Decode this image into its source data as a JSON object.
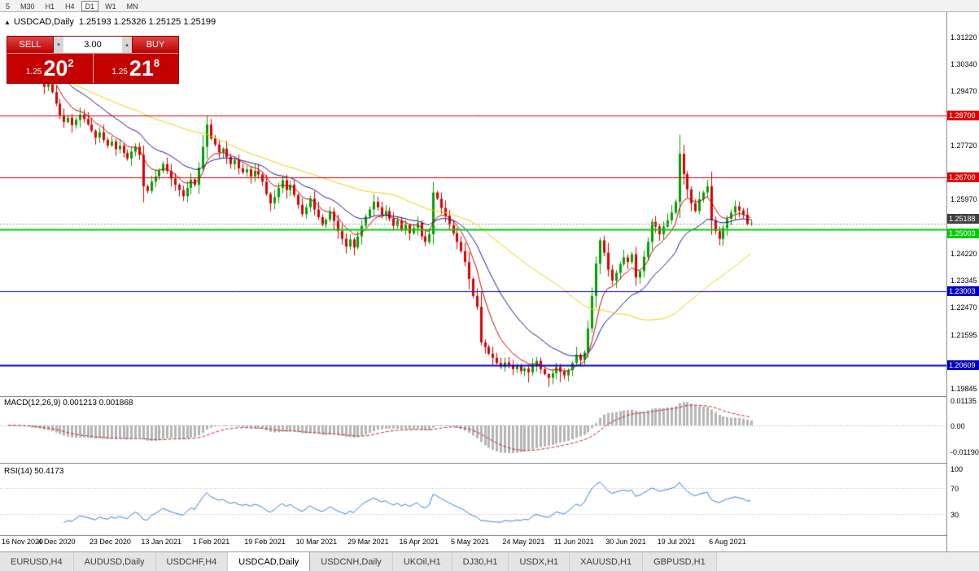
{
  "toolbar": {
    "timeframes": [
      {
        "label": "5",
        "active": false
      },
      {
        "label": "M30",
        "active": false
      },
      {
        "label": "H1",
        "active": false
      },
      {
        "label": "H4",
        "active": false
      },
      {
        "label": "D1",
        "active": true
      },
      {
        "label": "W1",
        "active": false
      },
      {
        "label": "MN",
        "active": false
      }
    ]
  },
  "chart_header": {
    "collapse_icon": "▲",
    "symbol": "USDCAD,Daily",
    "ohlc": "1.25193 1.25326 1.25125 1.25199"
  },
  "trade_panel": {
    "sell_label": "SELL",
    "buy_label": "BUY",
    "volume": "3.00",
    "sell_price": {
      "small": "1.25",
      "big": "20",
      "sup": "2"
    },
    "buy_price": {
      "small": "1.25",
      "big": "21",
      "sup": "8"
    }
  },
  "indicators": {
    "macd_label": "MACD(12,26,9) 0.001213 0.001868",
    "rsi_label": "RSI(14) 50.4173"
  },
  "chart_data": {
    "type": "candlestick",
    "symbol": "USDCAD",
    "timeframe": "Daily",
    "title_ohlc": {
      "open": 1.25193,
      "high": 1.25326,
      "low": 1.25125,
      "close": 1.25199
    },
    "closes": [
      1.3068,
      1.3082,
      1.3055,
      1.304,
      1.3052,
      1.3028,
      1.3,
      1.3015,
      1.2988,
      1.2962,
      1.2975,
      1.2945,
      1.2908,
      1.287,
      1.2848,
      1.2862,
      1.2838,
      1.2855,
      1.2872,
      1.2858,
      1.284,
      1.282,
      1.2798,
      1.2815,
      1.279,
      1.2772,
      1.2785,
      1.276,
      1.2772,
      1.2748,
      1.273,
      1.2752,
      1.2768,
      1.2742,
      1.264,
      1.2625,
      1.2655,
      1.2672,
      1.269,
      1.2712,
      1.269,
      1.2665,
      1.2645,
      1.2628,
      1.2608,
      1.2635,
      1.2662,
      1.2645,
      1.27,
      1.2768,
      1.284,
      1.2795,
      1.2775,
      1.275,
      1.2762,
      1.2735,
      1.2712,
      1.2725,
      1.2698,
      1.2685,
      1.2695,
      1.2672,
      1.269,
      1.2678,
      1.2655,
      1.2615,
      1.2585,
      1.2605,
      1.2635,
      1.266,
      1.2628,
      1.2645,
      1.2612,
      1.258,
      1.255,
      1.2572,
      1.26,
      1.2565,
      1.254,
      1.2515,
      1.2532,
      1.2558,
      1.2528,
      1.2495,
      1.247,
      1.2445,
      1.2468,
      1.2442,
      1.2478,
      1.2512,
      1.2542,
      1.2565,
      1.259,
      1.2572,
      1.2548,
      1.256,
      1.2535,
      1.2512,
      1.253,
      1.2498,
      1.2515,
      1.2488,
      1.2505,
      1.2522,
      1.2478,
      1.246,
      1.2485,
      1.262,
      1.26,
      1.257,
      1.2545,
      1.2515,
      1.2488,
      1.246,
      1.243,
      1.2395,
      1.234,
      1.2285,
      1.225,
      1.2135,
      1.212,
      1.2098,
      1.2085,
      1.2068,
      1.2055,
      1.207,
      1.2062,
      1.2048,
      1.2058,
      1.2042,
      1.205,
      1.2038,
      1.206,
      1.2075,
      1.2048,
      1.2032,
      1.202,
      1.2035,
      1.2055,
      1.204,
      1.2028,
      1.2045,
      1.2068,
      1.2095,
      1.2078,
      1.2102,
      1.218,
      1.2285,
      1.239,
      1.2465,
      1.2425,
      1.237,
      1.2335,
      1.236,
      1.2388,
      1.241,
      1.2395,
      1.242,
      1.2345,
      1.2365,
      1.2412,
      1.246,
      1.2525,
      1.251,
      1.2485,
      1.251,
      1.253,
      1.2555,
      1.259,
      1.2745,
      1.268,
      1.263,
      1.2585,
      1.256,
      1.2598,
      1.262,
      1.264,
      1.253,
      1.2495,
      1.247,
      1.2505,
      1.2535,
      1.2555,
      1.2575,
      1.2562,
      1.2548,
      1.2519,
      1.252
    ],
    "special_wicks": {
      "34": {
        "low": 1.2588
      },
      "50": {
        "high": 1.2868
      },
      "107": {
        "high": 1.2654,
        "low": 1.2452
      },
      "119": {
        "low": 1.2125
      },
      "131": {
        "low": 1.2005
      },
      "136": {
        "low": 1.199
      },
      "139": {
        "low": 1.2006
      },
      "169": {
        "high": 1.2807
      },
      "187": {
        "high": 1.2533,
        "low": 1.2512
      }
    },
    "x_labels": [
      {
        "i": 0,
        "label": "16 Nov 2020"
      },
      {
        "i": 13,
        "label": "4 Dec 2020"
      },
      {
        "i": 26,
        "label": "23 Dec 2020"
      },
      {
        "i": 39,
        "label": "13 Jan 2021"
      },
      {
        "i": 52,
        "label": "1 Feb 2021"
      },
      {
        "i": 65,
        "label": "19 Feb 2021"
      },
      {
        "i": 78,
        "label": "10 Mar 2021"
      },
      {
        "i": 91,
        "label": "29 Mar 2021"
      },
      {
        "i": 104,
        "label": "16 Apr 2021"
      },
      {
        "i": 117,
        "label": "5 May 2021"
      },
      {
        "i": 130,
        "label": "24 May 2021"
      },
      {
        "i": 143,
        "label": "11 Jun 2021"
      },
      {
        "i": 156,
        "label": "30 Jun 2021"
      },
      {
        "i": 169,
        "label": "19 Jul 2021"
      },
      {
        "i": 182,
        "label": "6 Aug 2021"
      }
    ],
    "y_ticks": [
      "1.31220",
      "1.30340",
      "1.29470",
      "1.27720",
      "1.25970",
      "1.24220",
      "1.23345",
      "1.22470",
      "1.21595",
      "1.19845"
    ],
    "levels": [
      {
        "label": "1.28700",
        "price": 1.287,
        "color": "#e00000",
        "width": 1
      },
      {
        "label": "1.26700",
        "price": 1.267,
        "color": "#e00000",
        "width": 1
      },
      {
        "label": "1.25003",
        "price": 1.25003,
        "color": "#00cc00",
        "width": 2
      },
      {
        "label": "1.23003",
        "price": 1.23003,
        "color": "#0000c0",
        "width": 1
      },
      {
        "label": "1.20609",
        "price": 1.20609,
        "color": "#0000c0",
        "width": 2
      }
    ],
    "current_price": {
      "label": "1.25188",
      "price": 1.25188,
      "line_color": "#9a9a9a",
      "box_color": "#404040"
    },
    "moving_averages": [
      {
        "period": 8,
        "method": "ema",
        "color": "#cc0000"
      },
      {
        "period": 21,
        "method": "ema",
        "color": "#16169c"
      },
      {
        "period": 50,
        "method": "sma",
        "color": "#e8d200"
      }
    ],
    "macd": {
      "params": [
        12,
        26,
        9
      ],
      "value": 0.001213,
      "signal_value": 0.001868,
      "scale": [
        {
          "label": "0.01135",
          "value": 0.01135
        },
        {
          "label": "0.00",
          "value": 0
        },
        {
          "label": "-0.01190",
          "value": -0.0119
        }
      ],
      "hist_color": "#b4b4b4",
      "signal_color": "#c62828"
    },
    "rsi": {
      "period": 14,
      "value": 50.4173,
      "scale": [
        {
          "label": "100",
          "value": 100
        },
        {
          "label": "70",
          "value": 70
        },
        {
          "label": "30",
          "value": 30
        }
      ],
      "levels": [
        70,
        30
      ],
      "color": "#2f7ed8"
    },
    "colors": {
      "candle_up": "#00a000",
      "candle_down": "#dc0000",
      "grid_dotted": "#b8b8b8"
    }
  },
  "tabs": [
    {
      "label": "EURUSD,H4",
      "active": false
    },
    {
      "label": "AUDUSD,Daily",
      "active": false
    },
    {
      "label": "USDCHF,H4",
      "active": false
    },
    {
      "label": "USDCAD,Daily",
      "active": true
    },
    {
      "label": "USDCNH,Daily",
      "active": false
    },
    {
      "label": "UKOil,H1",
      "active": false
    },
    {
      "label": "DJ30,H1",
      "active": false
    },
    {
      "label": "USDX,H1",
      "active": false
    },
    {
      "label": "XAUUSD,H1",
      "active": false
    },
    {
      "label": "GBPUSD,H1",
      "active": false
    }
  ]
}
